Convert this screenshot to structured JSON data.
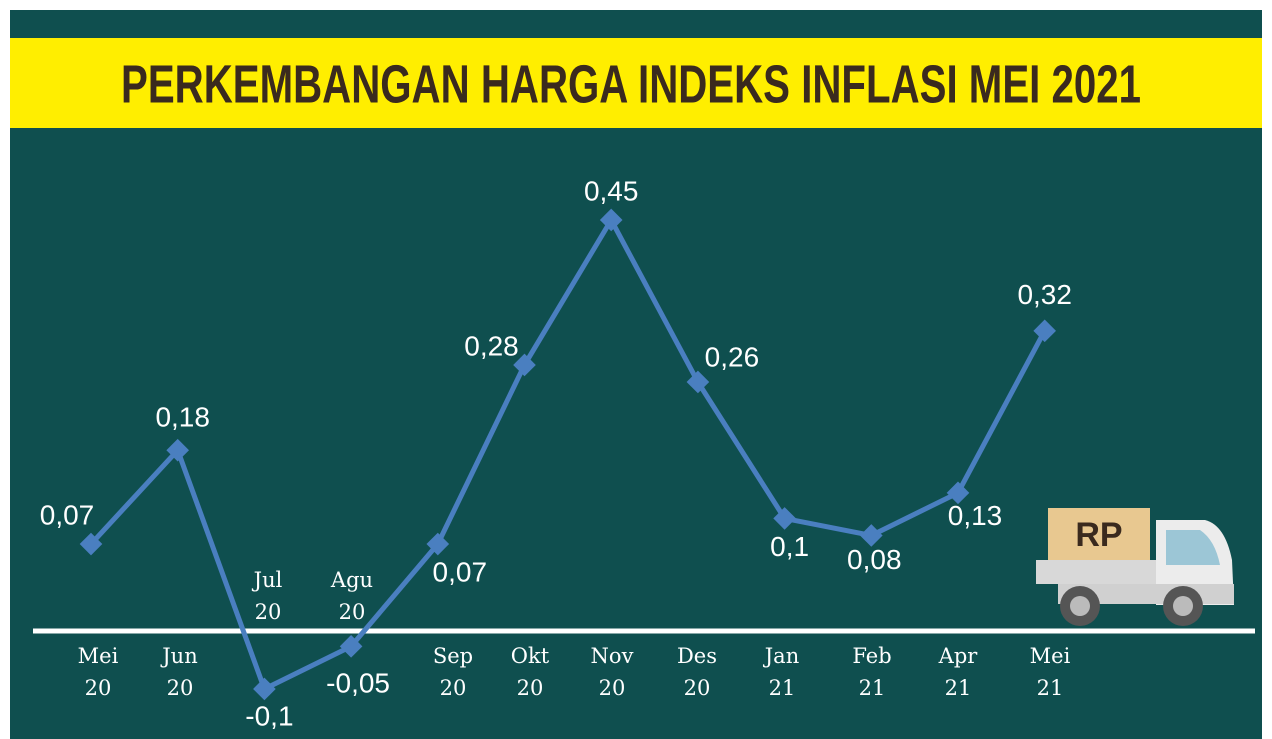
{
  "chart_data": {
    "type": "line",
    "title": "PERKEMBANGAN HARGA INDEKS INFLASI MEI 2021",
    "categories": [
      "Mei 20",
      "Jun 20",
      "Jul 20",
      "Agu 20",
      "Sep 20",
      "Okt 20",
      "Nov 20",
      "Des 20",
      "Jan 21",
      "Feb 21",
      "Apr 21",
      "Mei 21"
    ],
    "values": [
      0.07,
      0.18,
      -0.1,
      -0.05,
      0.07,
      0.28,
      0.45,
      0.26,
      0.1,
      0.08,
      0.13,
      0.32
    ],
    "value_labels": [
      "0,07",
      "0,18",
      "-0,1",
      "-0,05",
      "0,07",
      "0,28",
      "0,45",
      "0,26",
      "0,1",
      "0,08",
      "0,13",
      "0,32"
    ],
    "color": "#4a7fc0"
  },
  "truck_label": "RP"
}
